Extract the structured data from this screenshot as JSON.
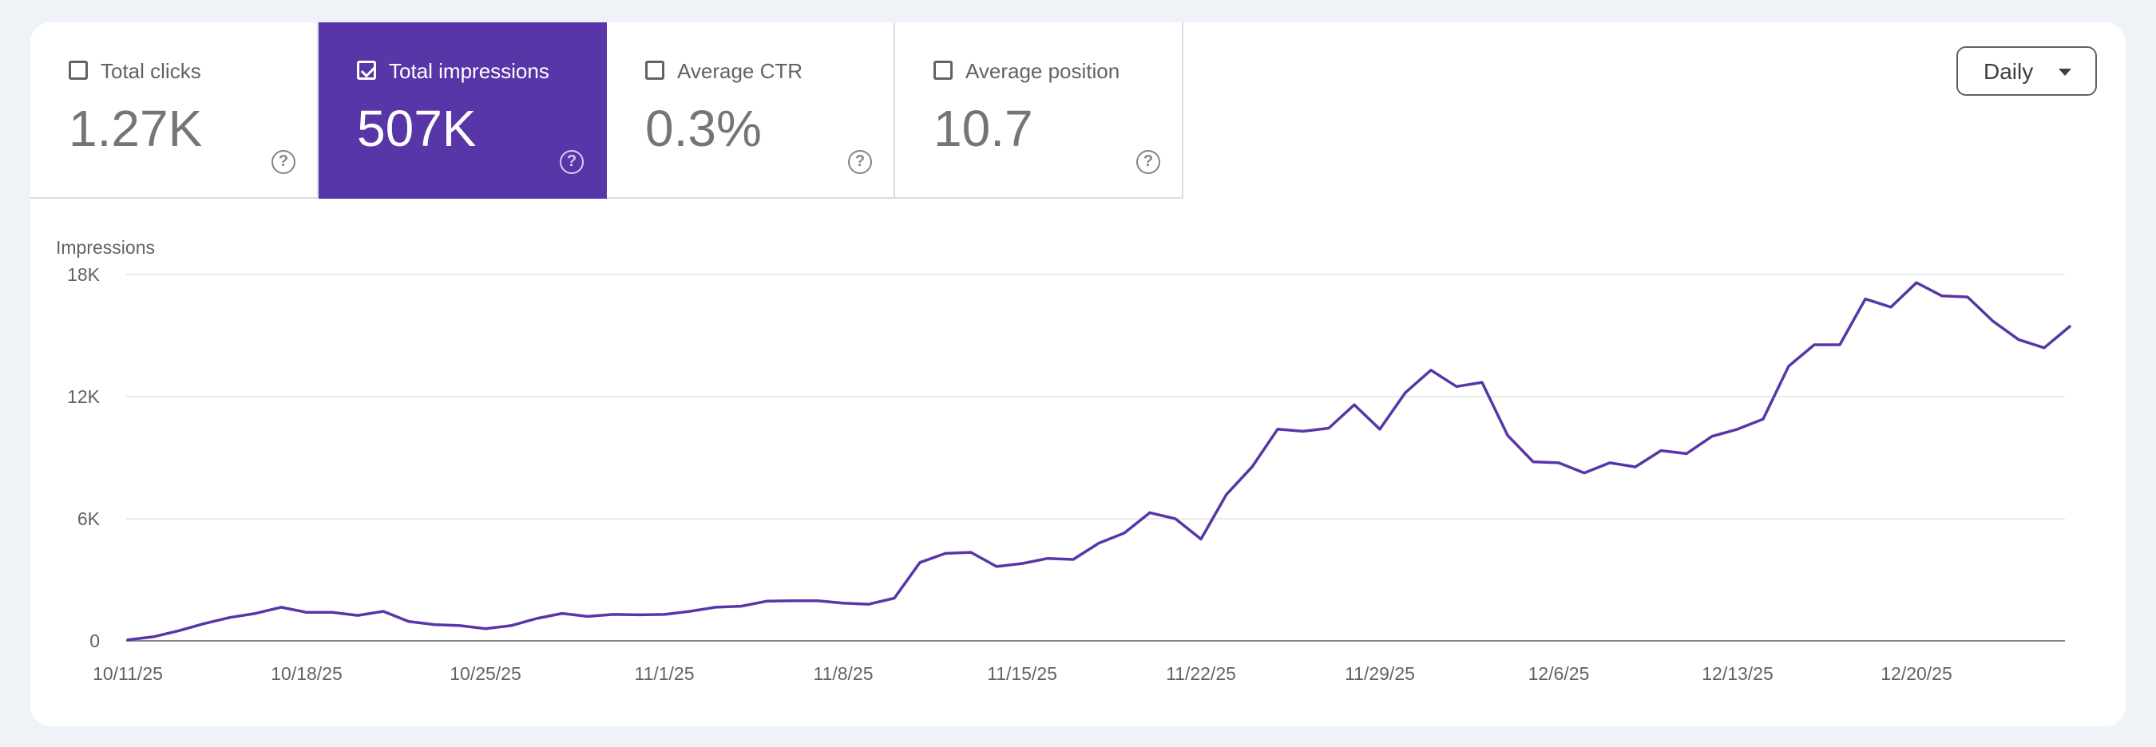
{
  "metrics": [
    {
      "label": "Total clicks",
      "value": "1.27K",
      "selected": false
    },
    {
      "label": "Total impressions",
      "value": "507K",
      "selected": true
    },
    {
      "label": "Average CTR",
      "value": "0.3%",
      "selected": false
    },
    {
      "label": "Average position",
      "value": "10.7",
      "selected": false
    }
  ],
  "help_icon_glyph": "?",
  "period": {
    "label": "Daily",
    "icon": "caret-down-icon"
  },
  "colors": {
    "accent": "#5836a8",
    "line": "#5836a8",
    "grid": "#e8eaed",
    "axis": "#80868b"
  },
  "chart_data": {
    "type": "line",
    "ylabel": "Impressions",
    "ylim": [
      0,
      18000
    ],
    "yticks": [
      0,
      6000,
      12000,
      18000
    ],
    "ytick_labels": [
      "0",
      "6K",
      "12K",
      "18K"
    ],
    "xtick_labels": [
      "10/11/25",
      "10/18/25",
      "10/25/25",
      "11/1/25",
      "11/8/25",
      "11/15/25",
      "11/22/25",
      "11/29/25",
      "12/6/25",
      "12/13/25",
      "12/20/25"
    ],
    "xtick_index": [
      0,
      7,
      14,
      21,
      28,
      35,
      42,
      49,
      56,
      63,
      70
    ],
    "grid": true,
    "series": [
      {
        "values": [
          50,
          200,
          500,
          850,
          1150,
          1350,
          1650,
          1400,
          1400,
          1250,
          1450,
          950,
          800,
          750,
          600,
          750,
          1100,
          1350,
          1200,
          1300,
          1280,
          1300,
          1450,
          1650,
          1700,
          1950,
          1970,
          1970,
          1850,
          1800,
          2100,
          3850,
          4300,
          4350,
          3650,
          3800,
          4050,
          4000,
          4800,
          5300,
          6300,
          6000,
          5000,
          7200,
          8550,
          10400,
          10300,
          10450,
          11600,
          10400,
          12200,
          13300,
          12500,
          12700,
          10100,
          8800,
          8750,
          8250,
          8750,
          8550,
          9350,
          9200,
          10050,
          10400,
          10900,
          13500,
          14550,
          14550,
          16800,
          16400,
          17600,
          16950,
          16900,
          15700,
          14800,
          14400,
          15450
        ]
      }
    ]
  }
}
